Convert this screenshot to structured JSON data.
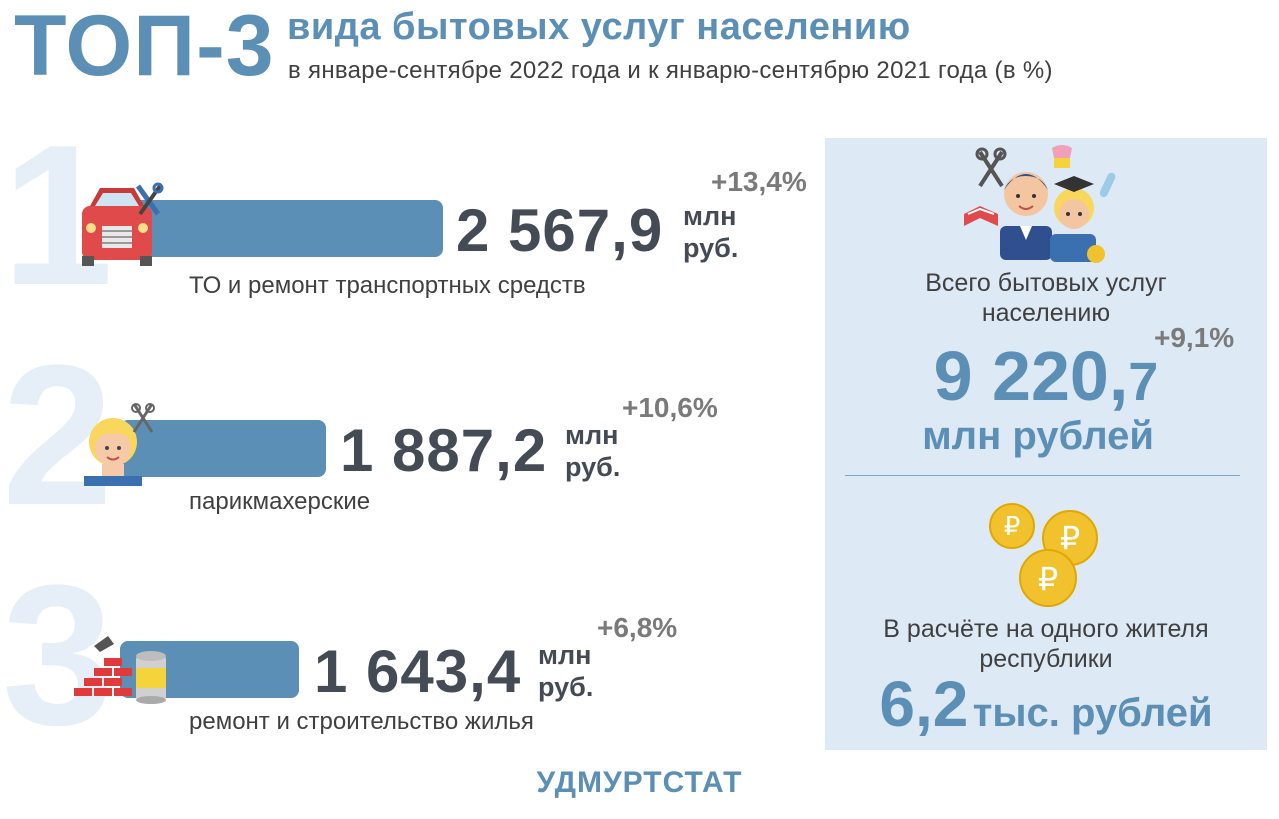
{
  "header": {
    "top_label": "ТОП-3",
    "title": "вида бытовых услуг населению",
    "subtitle": "в январе-сентябре 2022 года и к январю-сентябрю 2021 года (в %)"
  },
  "ranking": [
    {
      "rank": "1",
      "value": "2 567,9",
      "unit_line1": "млн",
      "unit_line2": "руб.",
      "change": "+13,4%",
      "label": "ТО и ремонт транспортных средств",
      "icon": "car-repair-icon",
      "value_mln": 2567.9
    },
    {
      "rank": "2",
      "value": "1 887,2",
      "unit_line1": "млн",
      "unit_line2": "руб.",
      "change": "+10,6%",
      "label": "парикмахерские",
      "icon": "hairdresser-icon",
      "value_mln": 1887.2
    },
    {
      "rank": "3",
      "value": "1 643,4",
      "unit_line1": "млн",
      "unit_line2": "руб.",
      "change": "+6,8%",
      "label": "ремонт и строительство жилья",
      "icon": "construction-icon",
      "value_mln": 1643.4
    }
  ],
  "summary": {
    "total_label": "Всего бытовых услуг населению",
    "total_value_main": "9 220,",
    "total_value_tail": "7",
    "total_unit": "млн рублей",
    "total_change": "+9,1%",
    "per_capita_label": "В расчёте на одного жителя республики",
    "per_capita_value": "6,2",
    "per_capita_unit": "тыс. рублей"
  },
  "footer": {
    "source": "УДМУРТСТАТ"
  },
  "colors": {
    "accent": "#5b8fb5",
    "panel_bg": "#dde9f5",
    "big_digit": "#e6eff7",
    "value_text": "#454b55",
    "coin": "#f2c22e"
  }
}
